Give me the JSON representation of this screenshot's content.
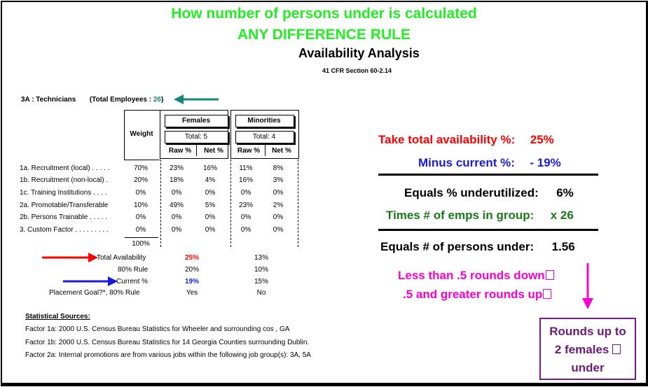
{
  "titles": {
    "line1": "How number of persons under is calculated",
    "line2": "ANY DIFFERENCE RULE",
    "main": "Availability Analysis",
    "cfr": "41 CFR Section 60-2.14"
  },
  "job_group": {
    "label": "3A : Technicians",
    "total_prefix": "(Total Employees :",
    "total_value": "26",
    "total_suffix": ")"
  },
  "table": {
    "weight_header": "Weight",
    "females": {
      "header": "Females",
      "total": "Total: 5"
    },
    "minorities": {
      "header": "Minorities",
      "total": "Total: 4"
    },
    "raw_label": "Raw %",
    "net_label": "Net %",
    "rows": [
      {
        "factor": "1a. Recruitment (local) . . . . .",
        "weight": "70%",
        "f_raw": "23%",
        "f_net": "16%",
        "m_raw": "11%",
        "m_net": "8%"
      },
      {
        "factor": "1b. Recruitment (non-local) .",
        "weight": "20%",
        "f_raw": "18%",
        "f_net": "4%",
        "m_raw": "16%",
        "m_net": "3%"
      },
      {
        "factor": "1c. Training Institutions . . . .",
        "weight": "0%",
        "f_raw": "0%",
        "f_net": "0%",
        "m_raw": "0%",
        "m_net": "0%"
      },
      {
        "factor": "2a. Promotable/Transferable",
        "weight": "10%",
        "f_raw": "49%",
        "f_net": "5%",
        "m_raw": "23%",
        "m_net": "2%"
      },
      {
        "factor": "2b. Persons Trainable . . . . .",
        "weight": "0%",
        "f_raw": "0%",
        "f_net": "0%",
        "m_raw": "0%",
        "m_net": "0%"
      },
      {
        "factor": "3. Custom Factor . . . . . . . . .",
        "weight": "0%",
        "f_raw": "0%",
        "f_net": "0%",
        "m_raw": "0%",
        "m_net": "0%"
      }
    ],
    "weight_total": "100%"
  },
  "summary": {
    "total_availability": {
      "label": "Total Availability",
      "females": "25%",
      "minorities": "13%"
    },
    "rule80": {
      "label": "80% Rule",
      "females": "20%",
      "minorities": "10%"
    },
    "current": {
      "label": "Current %",
      "females": "19%",
      "minorities": "15%"
    },
    "placement": {
      "label": "Placement Goal?*, 80% Rule",
      "females": "Yes",
      "minorities": "No"
    }
  },
  "sources": {
    "header": "Statistical Sources:",
    "lines": [
      "Factor 1a:  2000 U.S. Census Bureau Statistics for Wheeler and surrounding cos , GA",
      "Factor 1b:  2000 U.S. Census Bureau Statistics for 14 Georgia Counties surrounding Dublin.",
      "Factor 2a: Internal promotions are from various jobs within the following job group(s):  3A, 5A"
    ]
  },
  "calc": {
    "take_label": "Take total availability %:",
    "take_value": "25%",
    "minus_label": "Minus current %:",
    "minus_value": "- 19%",
    "equals_label": "Equals % underutilized:",
    "equals_value": "6%",
    "times_label": "Times # of emps in group:",
    "times_value": "x 26",
    "persons_label": "Equals # of persons under:",
    "persons_value": "1.56",
    "rounding_line1": "Less than .5 rounds down",
    "rounding_line2": ".5 and greater rounds up",
    "rounds_box": [
      "Rounds up to",
      "2 females",
      "under"
    ]
  },
  "colors": {
    "green_title": "#22ee22",
    "red": "#ff0000",
    "blue": "#1a1adf",
    "green": "#1a7a1a",
    "magenta": "#ff00cc",
    "purple": "#6b1a7a",
    "teal": "#118877"
  }
}
